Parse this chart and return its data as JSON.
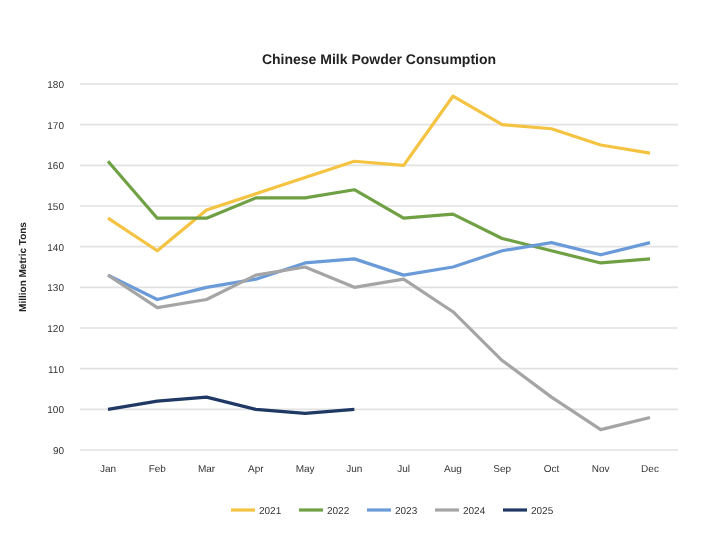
{
  "chart_data": {
    "type": "line",
    "title": "Chinese Milk Powder Consumption",
    "ylabel": "Million Metric Tons",
    "categories": [
      "Jan",
      "Feb",
      "Mar",
      "Apr",
      "May",
      "Jun",
      "Jul",
      "Aug",
      "Sep",
      "Oct",
      "Nov",
      "Dec"
    ],
    "series": [
      {
        "name": "2021",
        "color": "#f5c342",
        "values": [
          147,
          139,
          149,
          153,
          157,
          161,
          160,
          177,
          170,
          169,
          165,
          163
        ]
      },
      {
        "name": "2022",
        "color": "#70a044",
        "values": [
          161,
          147,
          147,
          152,
          152,
          154,
          147,
          148,
          142,
          139,
          136,
          137
        ]
      },
      {
        "name": "2023",
        "color": "#6a9bd8",
        "values": [
          133,
          127,
          130,
          132,
          136,
          137,
          133,
          135,
          139,
          141,
          138,
          141
        ]
      },
      {
        "name": "2024",
        "color": "#a5a5a5",
        "values": [
          133,
          125,
          127,
          133,
          135,
          130,
          132,
          124,
          112,
          103,
          95,
          98
        ]
      },
      {
        "name": "2025",
        "color": "#1f3864",
        "values": [
          100,
          102,
          103,
          100,
          99,
          100,
          null,
          null,
          null,
          null,
          null,
          null
        ]
      }
    ],
    "ylim": [
      90,
      180
    ],
    "yticks": [
      90,
      100,
      110,
      120,
      130,
      140,
      150,
      160,
      170,
      180
    ],
    "grid": "y",
    "legend": "bottom",
    "marker": "none",
    "line_style": "solid"
  }
}
